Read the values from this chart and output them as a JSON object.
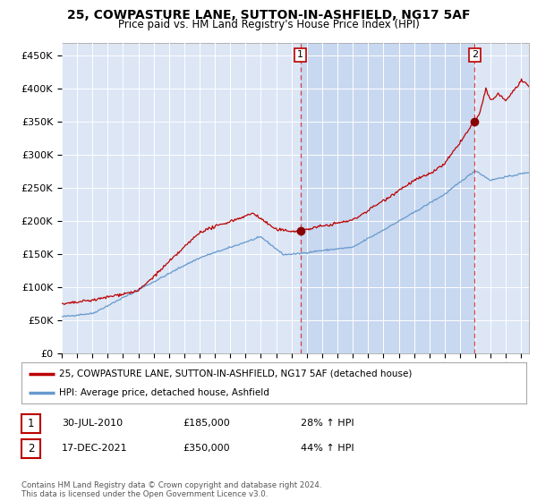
{
  "title": "25, COWPASTURE LANE, SUTTON-IN-ASHFIELD, NG17 5AF",
  "subtitle": "Price paid vs. HM Land Registry's House Price Index (HPI)",
  "ylim": [
    0,
    470000
  ],
  "yticks": [
    0,
    50000,
    100000,
    150000,
    200000,
    250000,
    300000,
    350000,
    400000,
    450000
  ],
  "ytick_labels": [
    "£0",
    "£50K",
    "£100K",
    "£150K",
    "£200K",
    "£250K",
    "£300K",
    "£350K",
    "£400K",
    "£450K"
  ],
  "plot_bg_color": "#dce6f5",
  "highlight_color": "#c8d8f0",
  "red_line_color": "#bb0000",
  "blue_line_color": "#6699cc",
  "sale1_date_x": 2010.58,
  "sale1_price": 185000,
  "sale2_date_x": 2021.96,
  "sale2_price": 350000,
  "legend_line1": "25, COWPASTURE LANE, SUTTON-IN-ASHFIELD, NG17 5AF (detached house)",
  "legend_line2": "HPI: Average price, detached house, Ashfield",
  "annotation1_date": "30-JUL-2010",
  "annotation1_price": "£185,000",
  "annotation1_hpi": "28% ↑ HPI",
  "annotation2_date": "17-DEC-2021",
  "annotation2_price": "£350,000",
  "annotation2_hpi": "44% ↑ HPI",
  "footer": "Contains HM Land Registry data © Crown copyright and database right 2024.\nThis data is licensed under the Open Government Licence v3.0.",
  "xmin": 1995,
  "xmax": 2025.5
}
